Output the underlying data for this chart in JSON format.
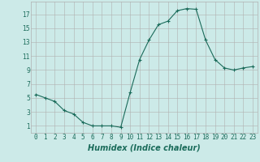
{
  "x": [
    0,
    1,
    2,
    3,
    4,
    5,
    6,
    7,
    8,
    9,
    10,
    11,
    12,
    13,
    14,
    15,
    16,
    17,
    18,
    19,
    20,
    21,
    22,
    23
  ],
  "y": [
    5.5,
    5.0,
    4.5,
    3.2,
    2.7,
    1.5,
    1.0,
    1.0,
    1.0,
    0.8,
    5.8,
    10.5,
    13.3,
    15.5,
    16.0,
    17.5,
    17.8,
    17.7,
    13.3,
    10.5,
    9.3,
    9.0,
    9.3,
    9.5
  ],
  "line_color": "#1a6b5a",
  "marker": "+",
  "marker_size": 3,
  "xlabel": "Humidex (Indice chaleur)",
  "xlabel_fontsize": 7,
  "ylabel_ticks": [
    1,
    3,
    5,
    7,
    9,
    11,
    13,
    15,
    17
  ],
  "xlim": [
    -0.5,
    23.5
  ],
  "ylim": [
    0,
    18.8
  ],
  "bg_color": "#cceae8",
  "grid_color": "#b0b0b0",
  "tick_fontsize": 5.5,
  "label_color": "#1a6b5a"
}
